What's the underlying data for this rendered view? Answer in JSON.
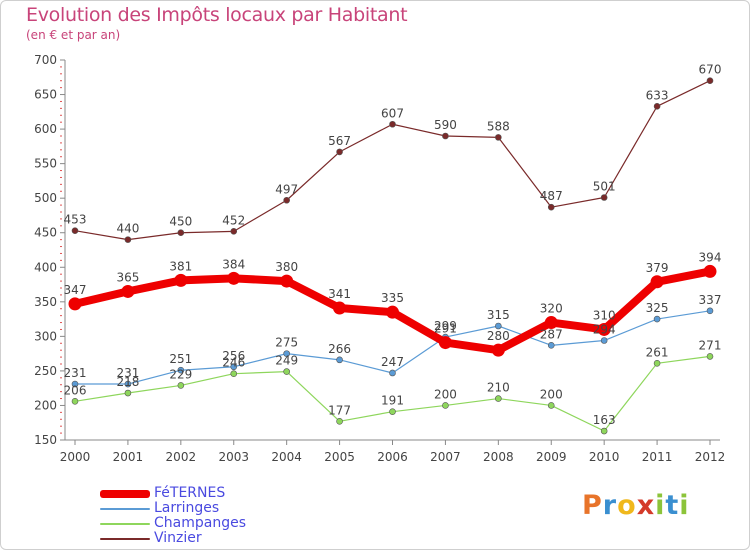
{
  "header": {
    "title": "Evolution des Impôts locaux par Habitant",
    "subtitle": "(en € et par an)"
  },
  "logo": {
    "text": "Proxiti",
    "letters": [
      "P",
      "r",
      "o",
      "x",
      "i",
      "t",
      "i"
    ],
    "colors": [
      "#e8742a",
      "#3a8fd0",
      "#f0b81c",
      "#d43a2a",
      "#8cc43a",
      "#3a8fd0",
      "#8cc43a"
    ]
  },
  "chart_data": {
    "type": "line",
    "title": "Evolution des Impôts locaux par Habitant",
    "subtitle": "(en € et par an)",
    "categories": [
      "2000",
      "2001",
      "2002",
      "2003",
      "2004",
      "2005",
      "2006",
      "2007",
      "2008",
      "2009",
      "2010",
      "2011",
      "2012"
    ],
    "ylim": [
      150,
      700
    ],
    "yticks": [
      150,
      200,
      250,
      300,
      350,
      400,
      450,
      500,
      550,
      600,
      650,
      700
    ],
    "grid": false,
    "legend_position": "bottom-left",
    "series": [
      {
        "name": "FéTERNES",
        "color": "#ee0000",
        "emphasis": true,
        "values": [
          347,
          365,
          381,
          384,
          380,
          341,
          335,
          291,
          280,
          320,
          310,
          379,
          394
        ]
      },
      {
        "name": "Larringes",
        "color": "#5b9bd5",
        "emphasis": false,
        "values": [
          231,
          231,
          251,
          256,
          275,
          266,
          247,
          299,
          315,
          287,
          294,
          325,
          337
        ]
      },
      {
        "name": "Champanges",
        "color": "#8ed65c",
        "emphasis": false,
        "values": [
          206,
          218,
          229,
          246,
          249,
          177,
          191,
          200,
          210,
          200,
          163,
          261,
          271
        ]
      },
      {
        "name": "Vinzier",
        "color": "#7a2a2a",
        "emphasis": false,
        "values": [
          453,
          440,
          450,
          452,
          497,
          567,
          607,
          590,
          588,
          487,
          501,
          633,
          670
        ]
      }
    ]
  }
}
